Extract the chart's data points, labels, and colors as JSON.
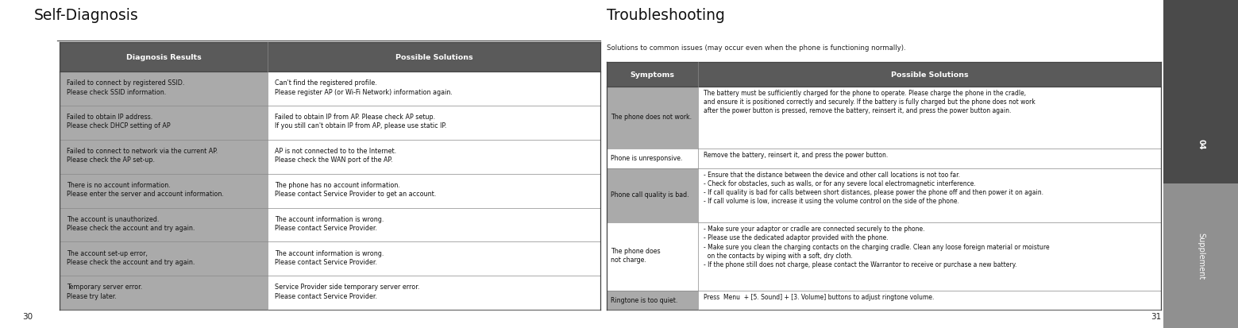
{
  "page_bg": "#ffffff",
  "sidebar_dark": "#4a4a4a",
  "sidebar_light": "#909090",
  "sidebar_text": "#ffffff",
  "sidebar_label_04": "04",
  "sidebar_label_supplement": "Supplement",
  "page_num_left": "30",
  "page_num_right": "31",
  "left_title": "Self-Diagnosis",
  "left_table_header_bg": "#5a5a5a",
  "left_table_header_text_color": "#ffffff",
  "left_table_col1_row_bg": "#aaaaaa",
  "left_table_col2_row_bg": "#ffffff",
  "left_table_col1_header": "Diagnosis Results",
  "left_table_col2_header": "Possible Solutions",
  "left_table_rows": [
    [
      "Failed to connect by registered SSID.\nPlease check SSID information.",
      "Can't find the registered profile.\nPlease register AP (or Wi-Fi Network) information again."
    ],
    [
      "Failed to obtain IP address.\nPlease check DHCP setting of AP",
      "Failed to obtain IP from AP. Please check AP setup.\nIf you still can't obtain IP from AP, please use static IP."
    ],
    [
      "Failed to connect to network via the current AP.\nPlease check the AP set-up.",
      "AP is not connected to to the Internet.\nPlease check the WAN port of the AP."
    ],
    [
      "There is no account information.\nPlease enter the server and account information.",
      "The phone has no account information.\nPlease contact Service Provider to get an account."
    ],
    [
      "The account is unauthorized.\nPlease check the account and try again.",
      "The account information is wrong.\nPlease contact Service Provider."
    ],
    [
      "The account set-up error,\nPlease check the account and try again.",
      "The account information is wrong.\nPlease contact Service Provider."
    ],
    [
      "Temporary server error.\nPlease try later.",
      "Service Provider side temporary server error.\nPlease contact Service Provider."
    ]
  ],
  "right_title": "Troubleshooting",
  "right_subtitle": "Solutions to common issues (may occur even when the phone is functioning normally).",
  "right_table_header_bg": "#5a5a5a",
  "right_table_header_text_color": "#ffffff",
  "right_table_row_odd_bg": "#aaaaaa",
  "right_table_row_even_bg": "#ffffff",
  "right_table_col1_header": "Symptoms",
  "right_table_col2_header": "Possible Solutions",
  "right_table_rows": [
    [
      "The phone does not work.",
      "The battery must be sufficiently charged for the phone to operate. Please charge the phone in the cradle,\nand ensure it is positioned correctly and securely. If the battery is fully charged but the phone does not work\nafter the power button is pressed, remove the battery, reinsert it, and press the power button again."
    ],
    [
      "Phone is unresponsive.",
      "Remove the battery, reinsert it, and press the power button."
    ],
    [
      "Phone call quality is bad.",
      "- Ensure that the distance between the device and other call locations is not too far.\n- Check for obstacles, such as walls, or for any severe local electromagnetic interference.\n- If call quality is bad for calls between short distances, please power the phone off and then power it on again.\n- If call volume is low, increase it using the volume control on the side of the phone."
    ],
    [
      "The phone does\nnot charge.",
      "- Make sure your adaptor or cradle are connected securely to the phone.\n- Please use the dedicated adaptor provided with the phone.\n- Make sure you clean the charging contacts on the charging cradle. Clean any loose foreign material or moisture\n  on the contacts by wiping with a soft, dry cloth.\n- If the phone still does not charge, please contact the Warrantor to receive or purchase a new battery."
    ],
    [
      "Ringtone is too quiet.",
      "Press  Menu  + [5. Sound] + [3. Volume] buttons to adjust ringtone volume."
    ]
  ]
}
